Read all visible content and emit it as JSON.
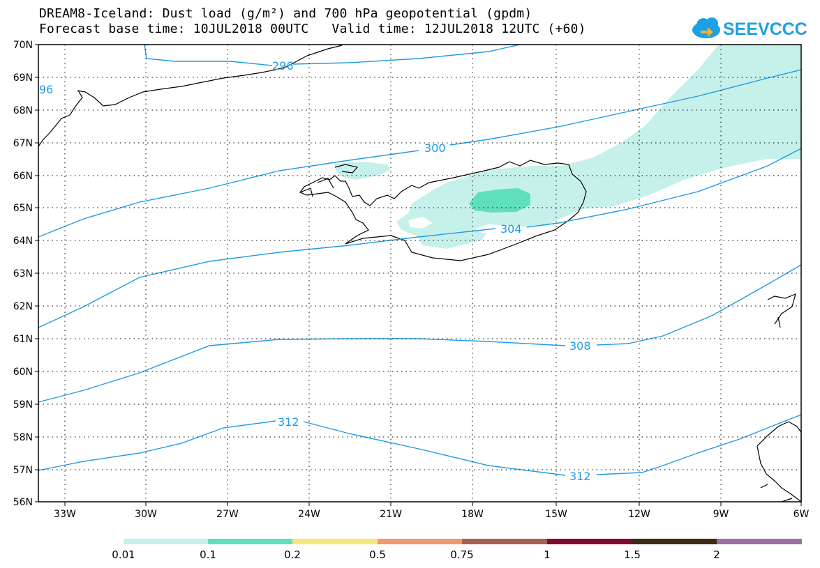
{
  "title_line1": "DREAM8-Iceland: Dust load (g/m²) and 700 hPa geopotential (gpdm)",
  "title_line2": "Forecast base time: 10JUL2018 00UTC   Valid time: 12JUL2018 12UTC (+60)",
  "logo_text": "SEEVCCC",
  "lat_labels": [
    "70N",
    "69N",
    "68N",
    "67N",
    "66N",
    "65N",
    "64N",
    "63N",
    "62N",
    "61N",
    "60N",
    "59N",
    "58N",
    "57N",
    "56N"
  ],
  "lon_labels": [
    "33W",
    "30W",
    "27W",
    "24W",
    "21W",
    "18W",
    "15W",
    "12W",
    "9W",
    "6W"
  ],
  "contour_labels": [
    "296",
    "300",
    "304",
    "308",
    "312",
    "312"
  ],
  "edge_label": "96",
  "colorbar": {
    "ticks": [
      "0.01",
      "0.1",
      "0.2",
      "0.5",
      "0.75",
      "1",
      "1.5",
      "2"
    ],
    "colors": [
      "#c6f0ea",
      "#5fe0bd",
      "#f5e77a",
      "#ec9a72",
      "#a55e52",
      "#7e0b2e",
      "#3e2a14",
      "#9b6fa0"
    ]
  },
  "colors": {
    "contour": "#1e9be6",
    "dust_light": "#c6f0ea",
    "dust_mid": "#5fe0bd"
  }
}
